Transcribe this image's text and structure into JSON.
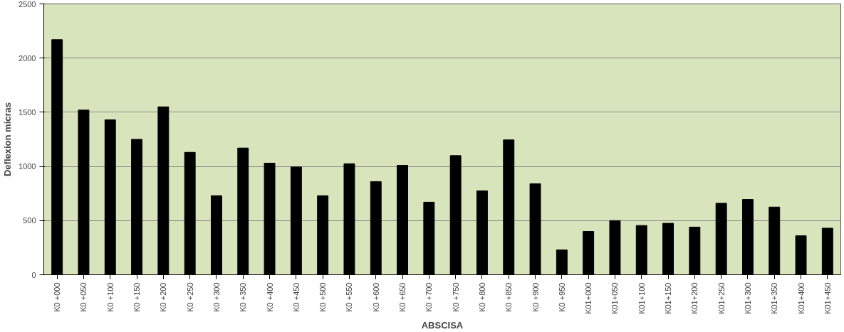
{
  "chart_data": {
    "type": "bar",
    "xlabel": "ABSCISA",
    "ylabel": "Deflexion micras",
    "categories": [
      "K0 +000",
      "K0 +050",
      "K0 +100",
      "K0 +150",
      "K0 +200",
      "K0 +250",
      "K0 +300",
      "K0 +350",
      "K0 +400",
      "K0 +450",
      "K0 +500",
      "K0 +550",
      "K0 +600",
      "K0 +650",
      "K0 +700",
      "K0 +750",
      "K0 +800",
      "K0 +850",
      "K0 +900",
      "K0 +950",
      "K01+000",
      "K01+050",
      "K01+100",
      "K01+150",
      "K01+200",
      "K01+250",
      "K01+300",
      "K01+350",
      "K01+400",
      "K01+450"
    ],
    "values": [
      2170,
      1520,
      1430,
      1250,
      1550,
      1130,
      730,
      1170,
      1030,
      995,
      730,
      1025,
      860,
      1010,
      670,
      1100,
      775,
      1245,
      840,
      230,
      400,
      500,
      455,
      475,
      440,
      660,
      695,
      625,
      360,
      430
    ],
    "color": "#000000",
    "ylim": [
      0,
      2500
    ],
    "yticks": [
      0,
      500,
      1000,
      1500,
      2000,
      2500
    ],
    "grid": "y"
  }
}
